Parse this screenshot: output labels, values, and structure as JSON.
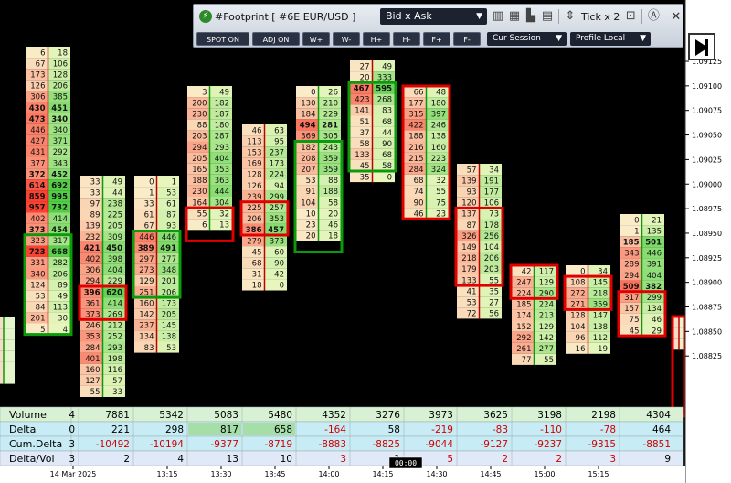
{
  "toolbar": {
    "title": "#Footprint [ #6E EUR/USD ]",
    "mode": "Bid x Ask",
    "tick": "Tick x 2",
    "buttons": [
      "SPOT ON",
      "ADJ ON",
      "W+",
      "W-",
      "H+",
      "H-",
      "F+",
      "F-"
    ],
    "session": "Cur Session",
    "profile": "Profile Local"
  },
  "price_axis": [
    "1.09125",
    "1.09100",
    "1.09075",
    "1.09050",
    "1.09025",
    "1.09000",
    "1.08975",
    "1.08950",
    "1.08925",
    "1.08900",
    "1.08875",
    "1.08850",
    "1.08825"
  ],
  "time_axis": {
    "labels": [
      "14 Mar 2025",
      "13:15",
      "13:30",
      "13:45",
      "14:00",
      "14:15",
      "14:30",
      "14:45",
      "15:00",
      "15:15"
    ],
    "cursor_time": "00:00"
  },
  "bars": [
    {
      "rows": [
        [
          "",
          ""
        ],
        [
          "",
          ""
        ],
        [
          "",
          ""
        ],
        [
          "",
          ""
        ],
        [
          "",
          ""
        ],
        [
          "",
          ""
        ]
      ]
    },
    {
      "rows": [
        [
          "6",
          "18"
        ],
        [
          "67",
          "106"
        ],
        [
          "173",
          "128"
        ],
        [
          "126",
          "206"
        ],
        [
          "306",
          "385"
        ],
        [
          "430",
          "451"
        ],
        [
          "473",
          "340"
        ],
        [
          "446",
          "340"
        ],
        [
          "427",
          "371"
        ],
        [
          "431",
          "292"
        ],
        [
          "377",
          "343"
        ],
        [
          "372",
          "452"
        ],
        [
          "614",
          "692"
        ],
        [
          "859",
          "995"
        ],
        [
          "957",
          "732"
        ],
        [
          "402",
          "414"
        ],
        [
          "373",
          "454"
        ],
        [
          "323",
          "317"
        ],
        [
          "723",
          "668"
        ],
        [
          "331",
          "282"
        ],
        [
          "340",
          "206"
        ],
        [
          "124",
          "89"
        ],
        [
          "53",
          "49"
        ],
        [
          "84",
          "113"
        ],
        [
          "201",
          "30"
        ],
        [
          "5",
          "4"
        ]
      ]
    },
    {
      "rows": [
        [
          "33",
          "49"
        ],
        [
          "33",
          "44"
        ],
        [
          "97",
          "238"
        ],
        [
          "89",
          "225"
        ],
        [
          "139",
          "205"
        ],
        [
          "232",
          "309"
        ],
        [
          "421",
          "450"
        ],
        [
          "402",
          "398"
        ],
        [
          "306",
          "404"
        ],
        [
          "294",
          "229"
        ],
        [
          "396",
          "620"
        ],
        [
          "361",
          "414"
        ],
        [
          "373",
          "269"
        ],
        [
          "246",
          "212"
        ],
        [
          "353",
          "252"
        ],
        [
          "284",
          "293"
        ],
        [
          "401",
          "198"
        ],
        [
          "160",
          "116"
        ],
        [
          "127",
          "57"
        ],
        [
          "55",
          "33"
        ]
      ]
    },
    {
      "rows": [
        [
          "0",
          "1"
        ],
        [
          "1",
          "53"
        ],
        [
          "33",
          "61"
        ],
        [
          "61",
          "87"
        ],
        [
          "67",
          "93"
        ],
        [
          "446",
          "446"
        ],
        [
          "389",
          "491"
        ],
        [
          "297",
          "277"
        ],
        [
          "273",
          "348"
        ],
        [
          "129",
          "201"
        ],
        [
          "251",
          "206"
        ],
        [
          "160",
          "173"
        ],
        [
          "142",
          "205"
        ],
        [
          "237",
          "145"
        ],
        [
          "134",
          "138"
        ],
        [
          "83",
          "53"
        ]
      ]
    },
    {
      "rows": [
        [
          "3",
          "49"
        ],
        [
          "200",
          "182"
        ],
        [
          "230",
          "187"
        ],
        [
          "88",
          "180"
        ],
        [
          "203",
          "287"
        ],
        [
          "294",
          "293"
        ],
        [
          "205",
          "404"
        ],
        [
          "165",
          "353"
        ],
        [
          "188",
          "363"
        ],
        [
          "230",
          "444"
        ],
        [
          "164",
          "304"
        ],
        [
          "55",
          "32"
        ],
        [
          "6",
          "13"
        ]
      ]
    },
    {
      "rows": [
        [
          "46",
          "63"
        ],
        [
          "113",
          "95"
        ],
        [
          "153",
          "237"
        ],
        [
          "169",
          "173"
        ],
        [
          "128",
          "224"
        ],
        [
          "126",
          "94"
        ],
        [
          "239",
          "299"
        ],
        [
          "225",
          "257"
        ],
        [
          "206",
          "353"
        ],
        [
          "386",
          "457"
        ],
        [
          "279",
          "373"
        ],
        [
          "45",
          "60"
        ],
        [
          "68",
          "90"
        ],
        [
          "31",
          "42"
        ],
        [
          "18",
          "0"
        ]
      ]
    },
    {
      "rows": [
        [
          "0",
          "26"
        ],
        [
          "130",
          "210"
        ],
        [
          "184",
          "229"
        ],
        [
          "494",
          "281"
        ],
        [
          "369",
          "305"
        ],
        [
          "182",
          "243"
        ],
        [
          "208",
          "359"
        ],
        [
          "207",
          "359"
        ],
        [
          "53",
          "88"
        ],
        [
          "91",
          "188"
        ],
        [
          "104",
          "58"
        ],
        [
          "10",
          "20"
        ],
        [
          "23",
          "46"
        ],
        [
          "20",
          "18"
        ]
      ]
    },
    {
      "rows": [
        [
          "27",
          "49"
        ],
        [
          "20",
          "333"
        ],
        [
          "467",
          "595"
        ],
        [
          "423",
          "268"
        ],
        [
          "141",
          "83"
        ],
        [
          "51",
          "68"
        ],
        [
          "37",
          "44"
        ],
        [
          "58",
          "90"
        ],
        [
          "133",
          "68"
        ],
        [
          "45",
          "58"
        ],
        [
          "35",
          "0"
        ]
      ]
    },
    {
      "rows": [
        [
          "66",
          "48"
        ],
        [
          "177",
          "180"
        ],
        [
          "315",
          "397"
        ],
        [
          "422",
          "246"
        ],
        [
          "188",
          "138"
        ],
        [
          "216",
          "160"
        ],
        [
          "215",
          "223"
        ],
        [
          "284",
          "324"
        ],
        [
          "68",
          "32"
        ],
        [
          "74",
          "55"
        ],
        [
          "90",
          "75"
        ],
        [
          "46",
          "23"
        ]
      ]
    },
    {
      "rows": [
        [
          "57",
          "34"
        ],
        [
          "139",
          "191"
        ],
        [
          "93",
          "177"
        ],
        [
          "120",
          "106"
        ],
        [
          "137",
          "73"
        ],
        [
          "87",
          "178"
        ],
        [
          "326",
          "256"
        ],
        [
          "149",
          "104"
        ],
        [
          "218",
          "206"
        ],
        [
          "179",
          "203"
        ],
        [
          "133",
          "55"
        ],
        [
          "41",
          "35"
        ],
        [
          "53",
          "27"
        ],
        [
          "72",
          "56"
        ]
      ]
    },
    {
      "rows": [
        [
          "42",
          "117"
        ],
        [
          "247",
          "129"
        ],
        [
          "224",
          "290"
        ],
        [
          "185",
          "224"
        ],
        [
          "174",
          "213"
        ],
        [
          "152",
          "129"
        ],
        [
          "292",
          "142"
        ],
        [
          "261",
          "277"
        ],
        [
          "77",
          "55"
        ]
      ]
    },
    {
      "rows": [
        [
          "0",
          "34"
        ],
        [
          "108",
          "145"
        ],
        [
          "272",
          "218"
        ],
        [
          "271",
          "359"
        ],
        [
          "128",
          "147"
        ],
        [
          "104",
          "138"
        ],
        [
          "96",
          "112"
        ],
        [
          "16",
          "19"
        ]
      ]
    },
    {
      "rows": [
        [
          "0",
          "21"
        ],
        [
          "1",
          "135"
        ],
        [
          "185",
          "501"
        ],
        [
          "343",
          "446"
        ],
        [
          "289",
          "391"
        ],
        [
          "294",
          "404"
        ],
        [
          "509",
          "382"
        ],
        [
          "317",
          "299"
        ],
        [
          "157",
          "134"
        ],
        [
          "75",
          "46"
        ],
        [
          "45",
          "29"
        ]
      ]
    },
    {
      "rows": [
        [
          "",
          ""
        ],
        [
          "",
          ""
        ],
        [
          "",
          ""
        ]
      ]
    }
  ],
  "stats": {
    "labels": [
      "Volume",
      "Delta",
      "Cum.Delta",
      "Delta/Vol"
    ],
    "values": [
      [
        "4",
        "0",
        "3",
        "3"
      ],
      [
        "7881",
        "221",
        "-10492",
        "2"
      ],
      [
        "5342",
        "298",
        "-10194",
        "4"
      ],
      [
        "5083",
        "817",
        "-9377",
        "13"
      ],
      [
        "5480",
        "658",
        "-8719",
        "10"
      ],
      [
        "4352",
        "-164",
        "-8883",
        "3"
      ],
      [
        "3276",
        "58",
        "-8825",
        "1"
      ],
      [
        "3973",
        "-219",
        "-9044",
        "5"
      ],
      [
        "3625",
        "-83",
        "-9127",
        "2"
      ],
      [
        "3198",
        "-110",
        "-9237",
        "2"
      ],
      [
        "2198",
        "-78",
        "-9315",
        "3"
      ],
      [
        "4304",
        "464",
        "-8851",
        "9"
      ]
    ]
  },
  "colors": {
    "background": "#000000",
    "bid_fill": "#f4837b",
    "ask_fill": "#7fd47f",
    "box_red": "#e00000",
    "box_green": "#0a9a0a",
    "stats_bg": "#d6f0d6"
  }
}
